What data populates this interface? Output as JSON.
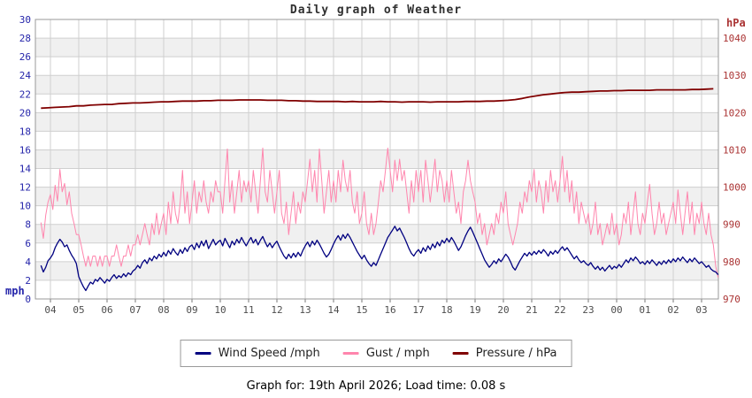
{
  "page": {
    "title": "Daily graph of Weather",
    "caption": "Graph for: 19th April 2026; Load time: 0.08 s"
  },
  "colors": {
    "wind": "#000080",
    "gust": "#ff85ad",
    "pressure": "#800000",
    "left_axis_text": "#2424aa",
    "right_axis_text": "#aa3333",
    "x_axis_text": "#4d4d4d",
    "gridline": "#cfcfcf",
    "band_fill": "#f0f0f0",
    "plot_border": "#999999"
  },
  "axes": {
    "left": {
      "unit": "mph",
      "ticks": [
        0,
        2,
        4,
        6,
        8,
        10,
        12,
        14,
        16,
        18,
        20,
        22,
        24,
        26,
        28,
        30
      ]
    },
    "right": {
      "unit": "hPa",
      "ticks": [
        970,
        980,
        990,
        1000,
        1010,
        1020,
        1030,
        1040
      ]
    },
    "x": {
      "hour_labels": [
        "04",
        "05",
        "06",
        "07",
        "08",
        "09",
        "10",
        "11",
        "12",
        "13",
        "14",
        "15",
        "16",
        "17",
        "18",
        "19",
        "20",
        "21",
        "22",
        "23",
        "00",
        "01",
        "02",
        "03"
      ]
    }
  },
  "legend": {
    "items": [
      {
        "label": "Wind Speed /mph",
        "color": "#000080"
      },
      {
        "label": "Gust / mph",
        "color": "#ff85ad"
      },
      {
        "label": "Pressure / hPa",
        "color": "#800000"
      }
    ]
  },
  "chart_data": {
    "type": "line",
    "title": "Daily graph of Weather",
    "x_axis": {
      "start_time": "03:40",
      "end_time": "03:35",
      "hours_span": 24,
      "hour_labels": [
        "04",
        "05",
        "06",
        "07",
        "08",
        "09",
        "10",
        "11",
        "12",
        "13",
        "14",
        "15",
        "16",
        "17",
        "18",
        "19",
        "20",
        "21",
        "22",
        "23",
        "00",
        "01",
        "02",
        "03"
      ]
    },
    "y_left": {
      "label": "mph",
      "range": [
        0,
        30
      ],
      "tick_step": 2
    },
    "y_right": {
      "label": "hPa",
      "range": [
        970,
        1045
      ],
      "tick_step": 10
    },
    "grid": true,
    "legend_position": "bottom",
    "series": [
      {
        "name": "Wind Speed /mph",
        "color": "#000080",
        "axis": "left",
        "start_hour": 3.667,
        "step_minutes": 5,
        "values": [
          3.6,
          2.9,
          3.4,
          4.1,
          4.4,
          4.8,
          5.5,
          6.0,
          6.4,
          6.1,
          5.6,
          5.8,
          5.2,
          4.7,
          4.3,
          3.8,
          2.4,
          1.8,
          1.3,
          0.9,
          1.4,
          1.8,
          1.6,
          2.1,
          1.9,
          2.3,
          2.0,
          1.7,
          2.1,
          1.9,
          2.3,
          2.6,
          2.2,
          2.5,
          2.3,
          2.7,
          2.4,
          2.8,
          2.6,
          3.0,
          3.2,
          3.6,
          3.3,
          3.9,
          4.2,
          3.8,
          4.4,
          4.1,
          4.6,
          4.3,
          4.8,
          4.5,
          5.0,
          4.6,
          5.2,
          4.8,
          5.4,
          5.0,
          4.7,
          5.3,
          4.9,
          5.5,
          5.1,
          5.6,
          5.8,
          5.3,
          6.0,
          5.5,
          6.2,
          5.7,
          6.3,
          5.4,
          5.9,
          6.4,
          5.8,
          6.1,
          6.3,
          5.7,
          6.5,
          6.0,
          5.5,
          6.2,
          5.8,
          6.4,
          6.0,
          6.6,
          6.1,
          5.7,
          6.2,
          6.6,
          6.0,
          6.4,
          5.8,
          6.3,
          6.7,
          6.1,
          5.6,
          6.0,
          5.5,
          5.9,
          6.2,
          5.6,
          5.1,
          4.6,
          4.3,
          4.8,
          4.4,
          4.9,
          4.5,
          5.0,
          4.6,
          5.2,
          5.7,
          6.1,
          5.6,
          6.2,
          5.8,
          6.3,
          5.9,
          5.4,
          4.9,
          4.5,
          4.8,
          5.3,
          5.9,
          6.4,
          6.8,
          6.3,
          6.9,
          6.5,
          7.0,
          6.6,
          6.1,
          5.6,
          5.1,
          4.7,
          4.3,
          4.7,
          4.2,
          3.8,
          3.5,
          3.9,
          3.6,
          4.2,
          4.8,
          5.4,
          6.0,
          6.6,
          7.0,
          7.4,
          7.8,
          7.3,
          7.6,
          7.1,
          6.6,
          6.0,
          5.4,
          4.9,
          4.6,
          5.0,
          5.3,
          4.9,
          5.5,
          5.1,
          5.7,
          5.3,
          5.9,
          5.5,
          6.1,
          5.7,
          6.3,
          6.0,
          6.5,
          6.1,
          6.6,
          6.2,
          5.7,
          5.2,
          5.6,
          6.2,
          6.8,
          7.3,
          7.7,
          7.2,
          6.6,
          6.0,
          5.4,
          4.8,
          4.2,
          3.8,
          3.4,
          3.7,
          4.1,
          3.8,
          4.3,
          4.0,
          4.4,
          4.8,
          4.5,
          4.0,
          3.4,
          3.1,
          3.6,
          4.1,
          4.5,
          4.9,
          4.6,
          5.0,
          4.7,
          5.1,
          4.8,
          5.2,
          4.9,
          5.3,
          5.0,
          4.6,
          5.1,
          4.8,
          5.2,
          4.9,
          5.3,
          5.6,
          5.2,
          5.5,
          5.1,
          4.7,
          4.3,
          4.6,
          4.2,
          3.9,
          4.1,
          3.8,
          3.6,
          3.9,
          3.5,
          3.2,
          3.5,
          3.1,
          3.4,
          3.0,
          3.3,
          3.6,
          3.2,
          3.5,
          3.3,
          3.7,
          3.4,
          3.8,
          4.2,
          3.9,
          4.4,
          4.1,
          4.5,
          4.2,
          3.8,
          4.0,
          3.7,
          4.1,
          3.8,
          4.2,
          3.9,
          3.6,
          4.0,
          3.7,
          4.1,
          3.8,
          4.2,
          3.9,
          4.3,
          4.0,
          4.4,
          4.1,
          4.5,
          4.2,
          3.9,
          4.3,
          4.0,
          4.4,
          4.1,
          3.8,
          4.0,
          3.7,
          3.4,
          3.6,
          3.2,
          3.0,
          2.9,
          2.6
        ]
      },
      {
        "name": "Gust / mph",
        "color": "#ff85ad",
        "axis": "left",
        "start_hour": 3.667,
        "step_minutes": 5,
        "values": [
          8.2,
          6.5,
          9.0,
          10.4,
          11.2,
          9.6,
          12.2,
          10.5,
          13.9,
          11.5,
          12.4,
          10.1,
          11.5,
          9.2,
          8.1,
          6.9,
          6.9,
          5.8,
          4.6,
          3.5,
          4.6,
          3.5,
          4.6,
          4.6,
          3.5,
          4.6,
          3.5,
          4.6,
          4.6,
          3.5,
          4.6,
          4.6,
          5.8,
          4.6,
          3.5,
          4.6,
          4.6,
          5.8,
          4.6,
          5.8,
          5.8,
          6.9,
          5.8,
          6.9,
          8.1,
          6.9,
          5.8,
          8.1,
          6.9,
          9.2,
          6.9,
          8.1,
          9.2,
          6.9,
          10.4,
          8.1,
          11.5,
          9.2,
          8.1,
          10.4,
          13.8,
          9.2,
          11.5,
          8.1,
          10.4,
          12.7,
          9.2,
          11.5,
          10.4,
          12.7,
          10.4,
          9.2,
          11.5,
          10.4,
          12.7,
          11.5,
          11.5,
          9.2,
          12.7,
          16.1,
          10.4,
          12.7,
          9.2,
          11.5,
          13.8,
          10.4,
          12.7,
          11.5,
          12.7,
          10.4,
          13.8,
          11.5,
          9.2,
          12.7,
          16.2,
          11.5,
          10.4,
          13.8,
          11.5,
          9.2,
          11.5,
          13.8,
          9.2,
          8.1,
          10.4,
          6.9,
          9.2,
          11.5,
          8.1,
          10.4,
          9.2,
          11.5,
          10.4,
          12.7,
          15.0,
          11.5,
          13.8,
          10.4,
          16.1,
          12.7,
          9.2,
          11.5,
          13.8,
          10.4,
          12.7,
          10.4,
          13.8,
          11.5,
          14.9,
          12.7,
          11.5,
          13.8,
          10.4,
          9.2,
          11.5,
          8.1,
          9.2,
          11.5,
          8.1,
          6.9,
          9.2,
          6.9,
          8.1,
          10.4,
          12.7,
          11.5,
          13.8,
          16.2,
          13.8,
          11.5,
          14.9,
          12.7,
          15.0,
          12.7,
          13.8,
          11.5,
          9.2,
          12.7,
          10.4,
          13.8,
          11.5,
          13.8,
          10.4,
          14.9,
          12.7,
          10.4,
          12.7,
          15.0,
          11.5,
          13.8,
          12.7,
          10.4,
          12.7,
          10.4,
          13.8,
          11.5,
          9.2,
          10.4,
          8.1,
          11.5,
          12.7,
          14.9,
          12.7,
          11.5,
          10.4,
          8.1,
          9.2,
          6.9,
          8.1,
          5.8,
          6.9,
          8.1,
          6.9,
          9.2,
          8.1,
          10.4,
          9.2,
          11.5,
          8.1,
          6.9,
          5.8,
          6.9,
          8.1,
          10.4,
          9.2,
          11.5,
          10.4,
          12.7,
          11.5,
          13.9,
          10.4,
          12.7,
          11.5,
          9.2,
          12.7,
          10.4,
          13.8,
          11.5,
          12.7,
          10.4,
          12.7,
          15.3,
          11.5,
          13.8,
          10.4,
          12.7,
          9.2,
          11.5,
          8.1,
          10.4,
          9.2,
          8.1,
          9.2,
          6.9,
          8.1,
          10.4,
          6.9,
          8.1,
          5.8,
          6.9,
          8.1,
          6.9,
          9.2,
          6.9,
          8.1,
          5.8,
          6.9,
          9.2,
          8.1,
          10.4,
          6.9,
          9.2,
          11.5,
          8.1,
          6.9,
          9.2,
          8.1,
          10.4,
          12.3,
          9.2,
          6.9,
          8.1,
          10.4,
          8.1,
          9.2,
          6.9,
          8.1,
          9.2,
          10.4,
          8.1,
          11.7,
          9.2,
          6.9,
          9.2,
          11.5,
          8.1,
          10.4,
          6.9,
          9.2,
          8.1,
          10.4,
          8.1,
          6.9,
          9.2,
          6.9,
          5.8,
          3.5,
          2.3
        ]
      },
      {
        "name": "Pressure / hPa",
        "color": "#800000",
        "axis": "right",
        "start_hour": 3.667,
        "step_minutes": 15,
        "values": [
          1021.2,
          1021.3,
          1021.4,
          1021.5,
          1021.6,
          1021.8,
          1021.8,
          1022.0,
          1022.1,
          1022.2,
          1022.2,
          1022.4,
          1022.5,
          1022.6,
          1022.6,
          1022.7,
          1022.8,
          1022.9,
          1022.9,
          1023.0,
          1023.1,
          1023.1,
          1023.1,
          1023.2,
          1023.2,
          1023.3,
          1023.3,
          1023.3,
          1023.4,
          1023.4,
          1023.4,
          1023.4,
          1023.3,
          1023.3,
          1023.3,
          1023.2,
          1023.2,
          1023.1,
          1023.1,
          1023.0,
          1023.0,
          1023.0,
          1023.0,
          1022.9,
          1023.0,
          1022.9,
          1022.9,
          1022.9,
          1023.0,
          1022.9,
          1022.9,
          1022.8,
          1022.9,
          1022.9,
          1022.9,
          1022.8,
          1022.9,
          1022.9,
          1022.9,
          1022.9,
          1023.0,
          1023.0,
          1023.0,
          1023.1,
          1023.1,
          1023.2,
          1023.3,
          1023.5,
          1023.8,
          1024.2,
          1024.5,
          1024.8,
          1025.0,
          1025.2,
          1025.4,
          1025.5,
          1025.5,
          1025.6,
          1025.7,
          1025.8,
          1025.8,
          1025.9,
          1025.9,
          1026.0,
          1026.0,
          1026.0,
          1026.0,
          1026.1,
          1026.1,
          1026.1,
          1026.1,
          1026.1,
          1026.2,
          1026.2,
          1026.3,
          1026.4
        ]
      }
    ]
  }
}
